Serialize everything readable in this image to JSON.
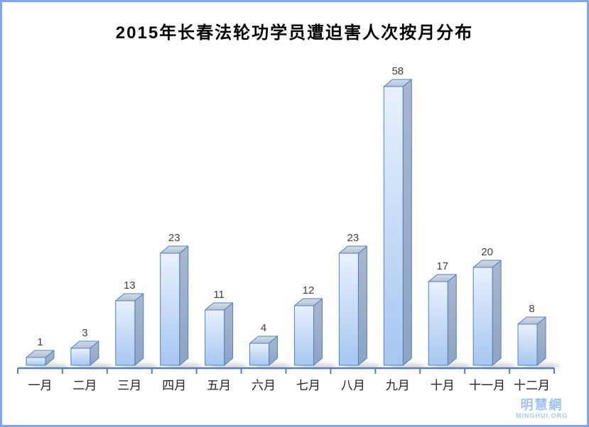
{
  "frame": {
    "border_color": "#7ea7f3",
    "background": "#ffffff"
  },
  "watermark": {
    "name": "明慧網",
    "site": "MINGHUI.ORG",
    "name_color": "#9fc3f3",
    "site_color": "#aac9f5"
  },
  "chart_data": {
    "type": "bar",
    "style": "3d",
    "title": "2015年长春法轮功学员遭迫害人次按月分布",
    "categories": [
      "一月",
      "二月",
      "三月",
      "四月",
      "五月",
      "六月",
      "七月",
      "八月",
      "九月",
      "十月",
      "十一月",
      "十二月"
    ],
    "values": [
      1,
      3,
      13,
      23,
      11,
      4,
      12,
      23,
      58,
      17,
      20,
      8
    ],
    "xlabel": "",
    "ylabel": "",
    "ylim": [
      0,
      60
    ],
    "grid": false,
    "legend": false,
    "data_labels": true,
    "colors": {
      "axis": "#4f81bd",
      "bar_border": "#4f81bd",
      "bar_front_top": "#e9f1fd",
      "bar_front_bottom": "#a7c6f0",
      "bar_side_top": "#a9b7cd",
      "bar_side_bottom": "#8da4c5",
      "bar_top_light": "#d2dbe7",
      "bar_top_dark": "#b4c1d4",
      "shadow": "#999999",
      "value_label": "#3f3f3f",
      "tick_label": "#1f1f1f",
      "title_color": "#000000"
    }
  }
}
